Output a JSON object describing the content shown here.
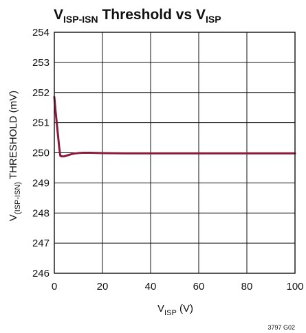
{
  "chart_data": {
    "type": "line",
    "title": {
      "parts": [
        {
          "text": "V",
          "sub": false
        },
        {
          "text": "ISP-ISN",
          "sub": true
        },
        {
          "text": " Threshold vs V",
          "sub": false
        },
        {
          "text": "ISP",
          "sub": true
        }
      ]
    },
    "xlabel": {
      "parts": [
        {
          "text": "V",
          "sub": false
        },
        {
          "text": "ISP",
          "sub": true
        },
        {
          "text": " (V)",
          "sub": false
        }
      ]
    },
    "ylabel": {
      "parts": [
        {
          "text": "V",
          "sub": false
        },
        {
          "text": "(ISP-ISN)",
          "sub": true
        },
        {
          "text": " THRESHOLD (mV)",
          "sub": false
        }
      ]
    },
    "xlim": [
      0,
      100
    ],
    "ylim": [
      246,
      254
    ],
    "x_ticks": [
      "0",
      "20",
      "40",
      "60",
      "80",
      "100"
    ],
    "y_ticks": [
      "246",
      "247",
      "248",
      "249",
      "250",
      "251",
      "252",
      "253",
      "254"
    ],
    "grid": true,
    "series": [
      {
        "color": "#8b1a3a",
        "x": [
          0,
          0.5,
          1,
          1.5,
          2,
          2.5,
          3,
          4,
          5,
          6,
          8,
          10,
          12,
          15,
          20,
          30,
          40,
          50,
          60,
          70,
          80,
          90,
          100
        ],
        "y": [
          251.85,
          251.4,
          251.0,
          250.6,
          250.2,
          249.9,
          249.88,
          249.88,
          249.9,
          249.93,
          249.97,
          249.99,
          250.0,
          250.0,
          249.99,
          249.98,
          249.98,
          249.98,
          249.98,
          249.98,
          249.98,
          249.98,
          249.98
        ]
      }
    ]
  },
  "figure_id": "3797 G02"
}
